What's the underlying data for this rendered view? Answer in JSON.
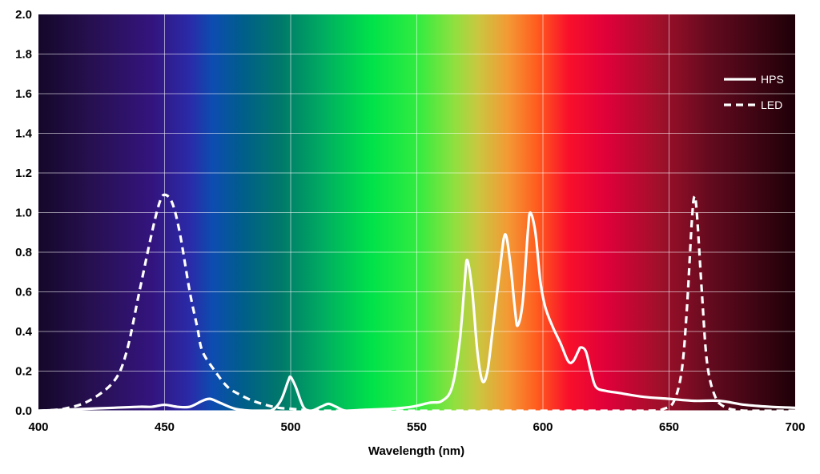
{
  "chart_data": {
    "type": "line",
    "title": "",
    "xlabel": "Wavelength (nm)",
    "ylabel": "",
    "xlim": [
      400,
      700
    ],
    "ylim": [
      0,
      2
    ],
    "x_ticks": [
      "400",
      "450",
      "500",
      "550",
      "600",
      "650",
      "700"
    ],
    "y_ticks": [
      "0.0",
      "0.2",
      "0.4",
      "0.6",
      "0.8",
      "1.0",
      "1.2",
      "1.4",
      "1.6",
      "1.8",
      "2.0"
    ],
    "grid": true,
    "legend": "top-right",
    "background": "visible spectrum gradient",
    "series": [
      {
        "name": "HPS",
        "style": "solid",
        "color": "#ffffff",
        "points": [
          [
            400,
            0
          ],
          [
            410,
            0.005
          ],
          [
            420,
            0.01
          ],
          [
            430,
            0.015
          ],
          [
            440,
            0.02
          ],
          [
            445,
            0.02
          ],
          [
            450,
            0.03
          ],
          [
            455,
            0.02
          ],
          [
            460,
            0.02
          ],
          [
            465,
            0.05
          ],
          [
            468,
            0.06
          ],
          [
            472,
            0.04
          ],
          [
            478,
            0.01
          ],
          [
            485,
            0
          ],
          [
            492,
            0
          ],
          [
            496,
            0.05
          ],
          [
            499,
            0.15
          ],
          [
            500,
            0.17
          ],
          [
            502,
            0.12
          ],
          [
            505,
            0.02
          ],
          [
            508,
            0
          ],
          [
            512,
            0.02
          ],
          [
            515,
            0.035
          ],
          [
            518,
            0.02
          ],
          [
            522,
            0
          ],
          [
            530,
            0.005
          ],
          [
            540,
            0.01
          ],
          [
            548,
            0.02
          ],
          [
            555,
            0.04
          ],
          [
            560,
            0.05
          ],
          [
            564,
            0.12
          ],
          [
            567,
            0.35
          ],
          [
            569,
            0.65
          ],
          [
            570,
            0.76
          ],
          [
            572,
            0.6
          ],
          [
            574,
            0.3
          ],
          [
            576,
            0.15
          ],
          [
            578,
            0.2
          ],
          [
            580,
            0.4
          ],
          [
            583,
            0.72
          ],
          [
            585,
            0.89
          ],
          [
            587,
            0.75
          ],
          [
            589,
            0.5
          ],
          [
            590,
            0.43
          ],
          [
            592,
            0.55
          ],
          [
            594,
            0.9
          ],
          [
            595,
            1.0
          ],
          [
            597,
            0.9
          ],
          [
            599,
            0.65
          ],
          [
            601,
            0.52
          ],
          [
            604,
            0.42
          ],
          [
            607,
            0.34
          ],
          [
            610,
            0.25
          ],
          [
            612,
            0.25
          ],
          [
            614,
            0.3
          ],
          [
            615,
            0.32
          ],
          [
            617,
            0.3
          ],
          [
            619,
            0.2
          ],
          [
            621,
            0.12
          ],
          [
            625,
            0.1
          ],
          [
            630,
            0.09
          ],
          [
            640,
            0.07
          ],
          [
            650,
            0.06
          ],
          [
            660,
            0.05
          ],
          [
            670,
            0.05
          ],
          [
            680,
            0.03
          ],
          [
            690,
            0.02
          ],
          [
            700,
            0.015
          ]
        ]
      },
      {
        "name": "LED",
        "style": "dashed",
        "color": "#ffffff",
        "points": [
          [
            400,
            0
          ],
          [
            410,
            0.01
          ],
          [
            420,
            0.05
          ],
          [
            430,
            0.15
          ],
          [
            435,
            0.3
          ],
          [
            440,
            0.6
          ],
          [
            445,
            0.9
          ],
          [
            448,
            1.05
          ],
          [
            450,
            1.09
          ],
          [
            453,
            1.05
          ],
          [
            456,
            0.9
          ],
          [
            460,
            0.6
          ],
          [
            463,
            0.42
          ],
          [
            465,
            0.3
          ],
          [
            470,
            0.2
          ],
          [
            475,
            0.12
          ],
          [
            480,
            0.08
          ],
          [
            485,
            0.05
          ],
          [
            490,
            0.03
          ],
          [
            495,
            0.015
          ],
          [
            500,
            0.01
          ],
          [
            510,
            0
          ],
          [
            520,
            0
          ],
          [
            600,
            0
          ],
          [
            640,
            0
          ],
          [
            648,
            0.01
          ],
          [
            652,
            0.05
          ],
          [
            655,
            0.2
          ],
          [
            657,
            0.5
          ],
          [
            659,
            0.95
          ],
          [
            660,
            1.08
          ],
          [
            661,
            1.0
          ],
          [
            663,
            0.6
          ],
          [
            665,
            0.25
          ],
          [
            668,
            0.08
          ],
          [
            672,
            0.02
          ],
          [
            680,
            0
          ],
          [
            700,
            0
          ]
        ]
      }
    ]
  }
}
